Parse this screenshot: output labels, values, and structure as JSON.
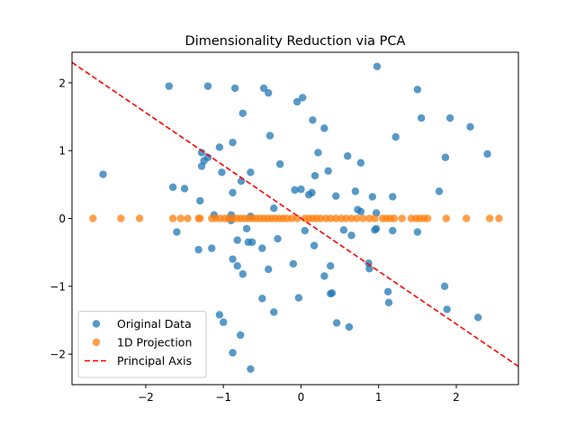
{
  "chart_data": {
    "type": "scatter",
    "title": "Dimensionality Reduction via PCA",
    "xlabel": "",
    "ylabel": "",
    "xlim": [
      -2.95,
      2.8
    ],
    "ylim": [
      -2.45,
      2.45
    ],
    "xticks": [
      -2,
      -1,
      0,
      1,
      2
    ],
    "xtick_labels": [
      "−2",
      "−1",
      "0",
      "1",
      "2"
    ],
    "yticks": [
      -2,
      -1,
      0,
      1,
      2
    ],
    "ytick_labels": [
      "−2",
      "−1",
      "0",
      "1",
      "2"
    ],
    "grid": false,
    "legend_position": "lower-left",
    "series": [
      {
        "name": "Original Data",
        "kind": "scatter",
        "color": "#1f77b4",
        "points": [
          [
            -2.55,
            0.65
          ],
          [
            -1.7,
            1.95
          ],
          [
            -1.2,
            1.95
          ],
          [
            -0.85,
            1.92
          ],
          [
            -0.48,
            1.92
          ],
          [
            -0.42,
            1.85
          ],
          [
            0.98,
            2.24
          ],
          [
            1.5,
            1.9
          ],
          [
            -0.75,
            1.55
          ],
          [
            -0.05,
            1.72
          ],
          [
            0.02,
            1.78
          ],
          [
            0.15,
            1.45
          ],
          [
            0.3,
            1.33
          ],
          [
            1.55,
            1.48
          ],
          [
            1.92,
            1.48
          ],
          [
            2.18,
            1.35
          ],
          [
            -0.4,
            1.22
          ],
          [
            1.22,
            1.2
          ],
          [
            -1.05,
            1.05
          ],
          [
            -0.88,
            1.12
          ],
          [
            0.22,
            0.97
          ],
          [
            -1.28,
            0.97
          ],
          [
            -1.2,
            0.9
          ],
          [
            0.6,
            0.92
          ],
          [
            1.86,
            0.9
          ],
          [
            2.4,
            0.95
          ],
          [
            -1.25,
            0.85
          ],
          [
            -1.28,
            0.77
          ],
          [
            -0.27,
            0.8
          ],
          [
            0.77,
            0.82
          ],
          [
            0.35,
            0.7
          ],
          [
            -0.65,
            0.68
          ],
          [
            -1.02,
            0.68
          ],
          [
            0.18,
            0.63
          ],
          [
            -1.65,
            0.46
          ],
          [
            -1.5,
            0.44
          ],
          [
            -0.77,
            0.55
          ],
          [
            -0.08,
            0.42
          ],
          [
            0.0,
            0.43
          ],
          [
            0.14,
            0.38
          ],
          [
            0.1,
            0.35
          ],
          [
            0.45,
            0.33
          ],
          [
            0.7,
            0.4
          ],
          [
            0.92,
            0.32
          ],
          [
            1.18,
            0.32
          ],
          [
            1.78,
            0.4
          ],
          [
            -0.88,
            0.38
          ],
          [
            -1.3,
            0.26
          ],
          [
            -0.35,
            0.15
          ],
          [
            0.73,
            0.13
          ],
          [
            0.77,
            0.1
          ],
          [
            0.97,
            0.08
          ],
          [
            -1.12,
            0.05
          ],
          [
            -0.9,
            0.05
          ],
          [
            -0.65,
            0.03
          ],
          [
            -0.9,
            -0.03
          ],
          [
            -1.6,
            -0.2
          ],
          [
            -0.7,
            -0.15
          ],
          [
            0.05,
            -0.18
          ],
          [
            0.55,
            -0.17
          ],
          [
            0.97,
            -0.15
          ],
          [
            0.95,
            -0.17
          ],
          [
            1.18,
            -0.18
          ],
          [
            1.5,
            -0.2
          ],
          [
            -0.3,
            -0.3
          ],
          [
            -0.68,
            -0.35
          ],
          [
            -0.63,
            -0.35
          ],
          [
            -0.82,
            -0.32
          ],
          [
            0.17,
            -0.4
          ],
          [
            0.65,
            -0.25
          ],
          [
            -1.32,
            -0.46
          ],
          [
            -1.15,
            -0.44
          ],
          [
            -0.5,
            -0.44
          ],
          [
            -0.88,
            -0.6
          ],
          [
            -0.82,
            -0.7
          ],
          [
            -0.42,
            -0.75
          ],
          [
            -0.1,
            -0.67
          ],
          [
            0.38,
            -0.7
          ],
          [
            0.87,
            -0.66
          ],
          [
            0.88,
            -0.74
          ],
          [
            -0.75,
            -0.82
          ],
          [
            0.3,
            -0.85
          ],
          [
            1.85,
            -1.0
          ],
          [
            0.4,
            -1.1
          ],
          [
            0.38,
            -1.11
          ],
          [
            1.12,
            -1.08
          ],
          [
            -0.5,
            -1.18
          ],
          [
            -0.03,
            -1.17
          ],
          [
            1.13,
            -1.24
          ],
          [
            -0.35,
            -1.38
          ],
          [
            1.88,
            -1.34
          ],
          [
            -1.05,
            -1.42
          ],
          [
            -1.0,
            -1.53
          ],
          [
            0.46,
            -1.54
          ],
          [
            0.62,
            -1.6
          ],
          [
            2.28,
            -1.46
          ],
          [
            -0.78,
            -1.72
          ],
          [
            -0.88,
            -1.98
          ],
          [
            -0.65,
            -2.22
          ]
        ]
      },
      {
        "name": "1D Projection",
        "kind": "scatter",
        "color": "#ff7f0e",
        "points": [
          [
            -2.68,
            0
          ],
          [
            -2.32,
            0
          ],
          [
            -2.08,
            0
          ],
          [
            -1.65,
            0
          ],
          [
            -1.55,
            0
          ],
          [
            -1.46,
            0
          ],
          [
            -1.32,
            0
          ],
          [
            -1.3,
            0
          ],
          [
            -1.15,
            0
          ],
          [
            -1.1,
            0
          ],
          [
            -1.04,
            0
          ],
          [
            -0.98,
            0
          ],
          [
            -0.93,
            0
          ],
          [
            -0.88,
            0
          ],
          [
            -0.83,
            0
          ],
          [
            -0.78,
            0
          ],
          [
            -0.73,
            0
          ],
          [
            -0.68,
            0
          ],
          [
            -0.63,
            0
          ],
          [
            -0.58,
            0
          ],
          [
            -0.53,
            0
          ],
          [
            -0.48,
            0
          ],
          [
            -0.43,
            0
          ],
          [
            -0.38,
            0
          ],
          [
            -0.33,
            0
          ],
          [
            -0.28,
            0
          ],
          [
            -0.23,
            0
          ],
          [
            -0.18,
            0
          ],
          [
            -0.12,
            0
          ],
          [
            -0.05,
            0
          ],
          [
            0.05,
            0
          ],
          [
            0.1,
            0
          ],
          [
            0.15,
            0
          ],
          [
            0.2,
            0
          ],
          [
            0.25,
            0
          ],
          [
            0.32,
            0
          ],
          [
            0.38,
            0
          ],
          [
            0.45,
            0
          ],
          [
            0.52,
            0
          ],
          [
            0.58,
            0
          ],
          [
            0.65,
            0
          ],
          [
            0.72,
            0
          ],
          [
            0.8,
            0
          ],
          [
            0.88,
            0
          ],
          [
            0.95,
            0
          ],
          [
            1.05,
            0
          ],
          [
            1.1,
            0
          ],
          [
            1.15,
            0
          ],
          [
            1.2,
            0
          ],
          [
            1.3,
            0
          ],
          [
            1.42,
            0
          ],
          [
            1.48,
            0
          ],
          [
            1.53,
            0
          ],
          [
            1.58,
            0
          ],
          [
            1.63,
            0
          ],
          [
            1.87,
            0
          ],
          [
            2.13,
            0
          ],
          [
            2.43,
            0
          ],
          [
            2.55,
            0
          ]
        ]
      },
      {
        "name": "Principal Axis",
        "kind": "line",
        "color": "#ff0000",
        "style": "dashed",
        "points": [
          [
            -2.95,
            2.3
          ],
          [
            2.8,
            -2.18
          ]
        ]
      }
    ]
  }
}
